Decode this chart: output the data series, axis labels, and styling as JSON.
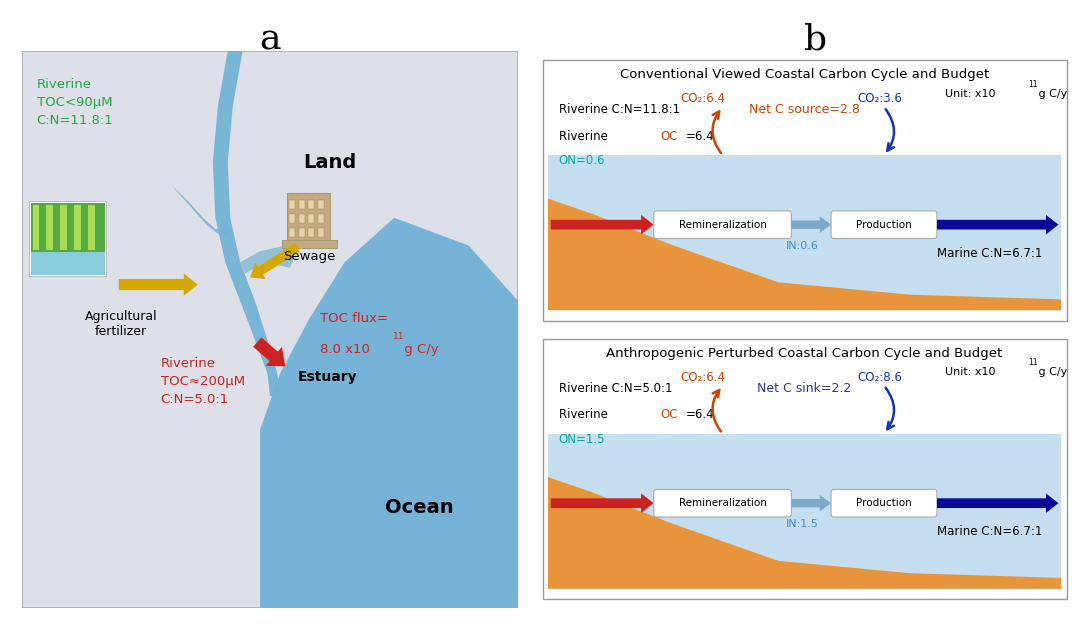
{
  "title_a": "a",
  "title_b": "b",
  "panel_b1_title": "Conventional Viewed Coastal Carbon Cycle and Budget",
  "panel_b2_title": "Anthropogenic Perturbed Coastal Carbon Cycle and Budget",
  "b1_riverine_cn": "Riverine C:N=11.8:1",
  "b1_net_c": "Net C source=2.8",
  "b1_on": "ON=0.6",
  "b1_remin": "Remineralization",
  "b1_prod": "Production",
  "b1_in": "IN:0.6",
  "b1_marine_cn": "Marine C:N=6.7:1",
  "b1_co2_left": "CO₂:6.4",
  "b1_co2_right": "CO₂:3.6",
  "b2_riverine_cn": "Riverine C:N=5.0:1",
  "b2_net_c": "Net C sink=2.2",
  "b2_on": "ON=1.5",
  "b2_remin": "Remineralization",
  "b2_prod": "Production",
  "b2_in": "IN:1.5",
  "b2_marine_cn": "Marine C:N=6.7:1",
  "b2_co2_left": "CO₂:6.4",
  "b2_co2_right": "CO₂:8.6",
  "land_bg": "#dde0e8",
  "ocean_color": "#6baed6",
  "river_color": "#74b3d4",
  "seafloor_color": "#e8943a",
  "water_color": "#c5dff0",
  "red_arrow_color": "#cc2222",
  "blue_mid_arrow_color": "#7aaac8",
  "blue_right_arrow_color": "#0a0a99",
  "co2_left_color": "#cc4400",
  "co2_right_color": "#1133bb",
  "green_text_color": "#22aa44",
  "on_color": "#00aaaa",
  "net_c_source_color": "#cc4400",
  "net_c_sink_color": "#333399",
  "riverine_oc_color": "#cc4400",
  "yellow_arrow": "#d4a800",
  "box_border": "#aaaaaa"
}
